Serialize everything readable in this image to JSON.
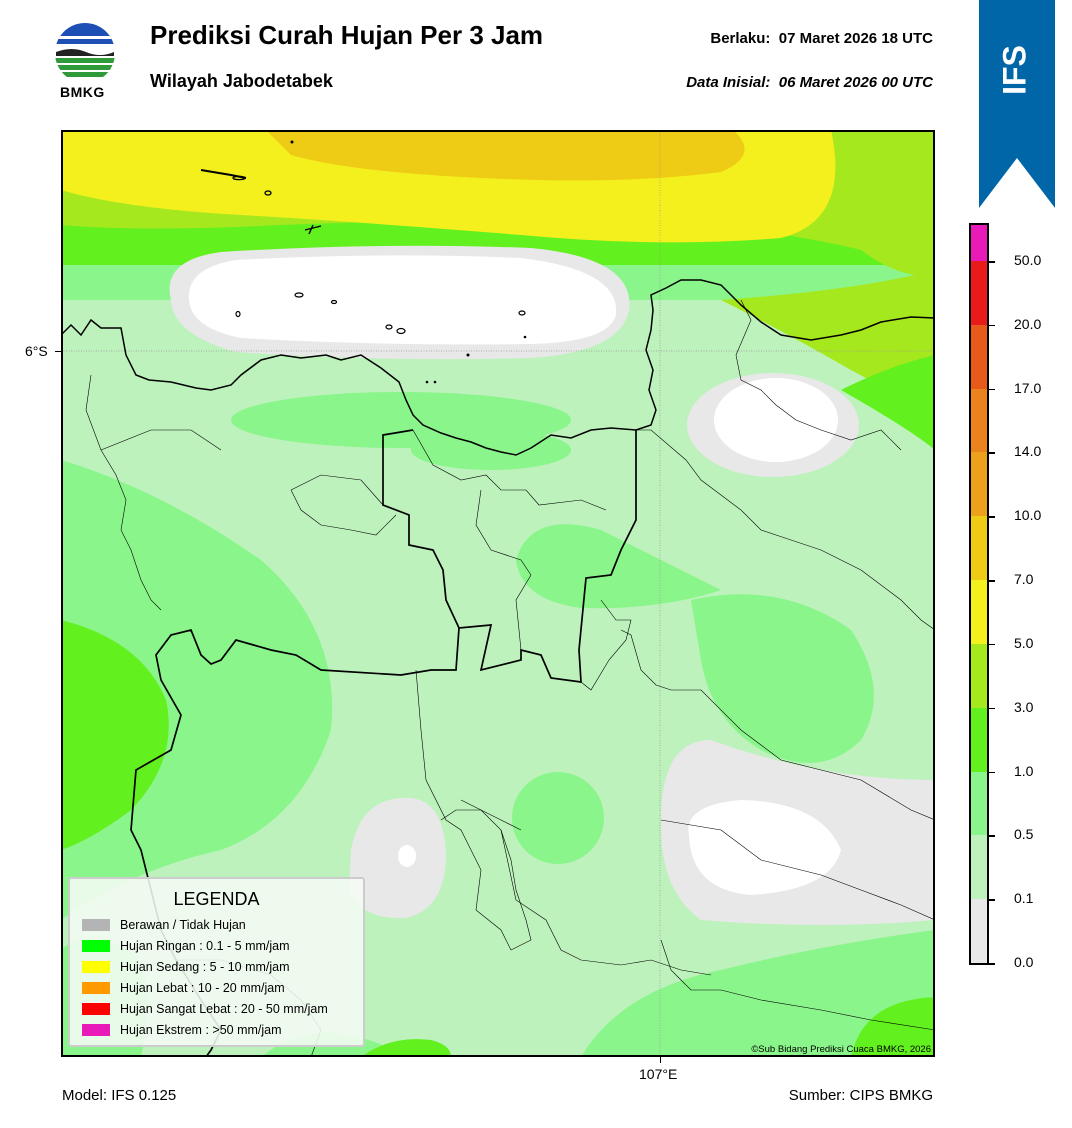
{
  "header": {
    "title": "Prediksi Curah Hujan Per 3 Jam",
    "subtitle": "Wilayah Jabodetabek",
    "valid_label": "Berlaku:",
    "valid_time": "07 Maret 2026 18 UTC",
    "init_label": "Data Inisial:",
    "init_time": "06 Maret 2026 00 UTC",
    "logo_text": "BMKG"
  },
  "badge": {
    "text": "IFS",
    "color": "#0066a8"
  },
  "map": {
    "lat_label": "6°S",
    "lon_label": "107°E",
    "copyright": "©Sub Bidang Prediksi Cuaca BMKG, 2026"
  },
  "legend": {
    "title": "LEGENDA",
    "items": [
      {
        "label": "Berawan / Tidak Hujan",
        "color": "#b4b4b4"
      },
      {
        "label": "Hujan Ringan : 0.1 - 5 mm/jam",
        "color": "#00ff00"
      },
      {
        "label": "Hujan Sedang : 5 - 10 mm/jam",
        "color": "#ffff00"
      },
      {
        "label": "Hujan Lebat : 10 - 20 mm/jam",
        "color": "#ff9900"
      },
      {
        "label": "Hujan Sangat Lebat : 20 - 50 mm/jam",
        "color": "#ff0000"
      },
      {
        "label": "Hujan Ekstrem : >50 mm/jam",
        "color": "#e81ab8"
      }
    ]
  },
  "colorbar": {
    "labels": [
      "50.0",
      "20.0",
      "17.0",
      "14.0",
      "10.0",
      "7.0",
      "5.0",
      "3.0",
      "1.0",
      "0.5",
      "0.1",
      "0.0"
    ],
    "colors": [
      "#e81ab8",
      "#e81a1a",
      "#e85a1a",
      "#ea821e",
      "#eca01c",
      "#eecb14",
      "#f4f01e",
      "#a6e81e",
      "#62f01e",
      "#8af58a",
      "#bdf2bd",
      "#e8e8e8"
    ]
  },
  "footer": {
    "model": "Model: IFS 0.125",
    "source": "Sumber: CIPS BMKG"
  }
}
